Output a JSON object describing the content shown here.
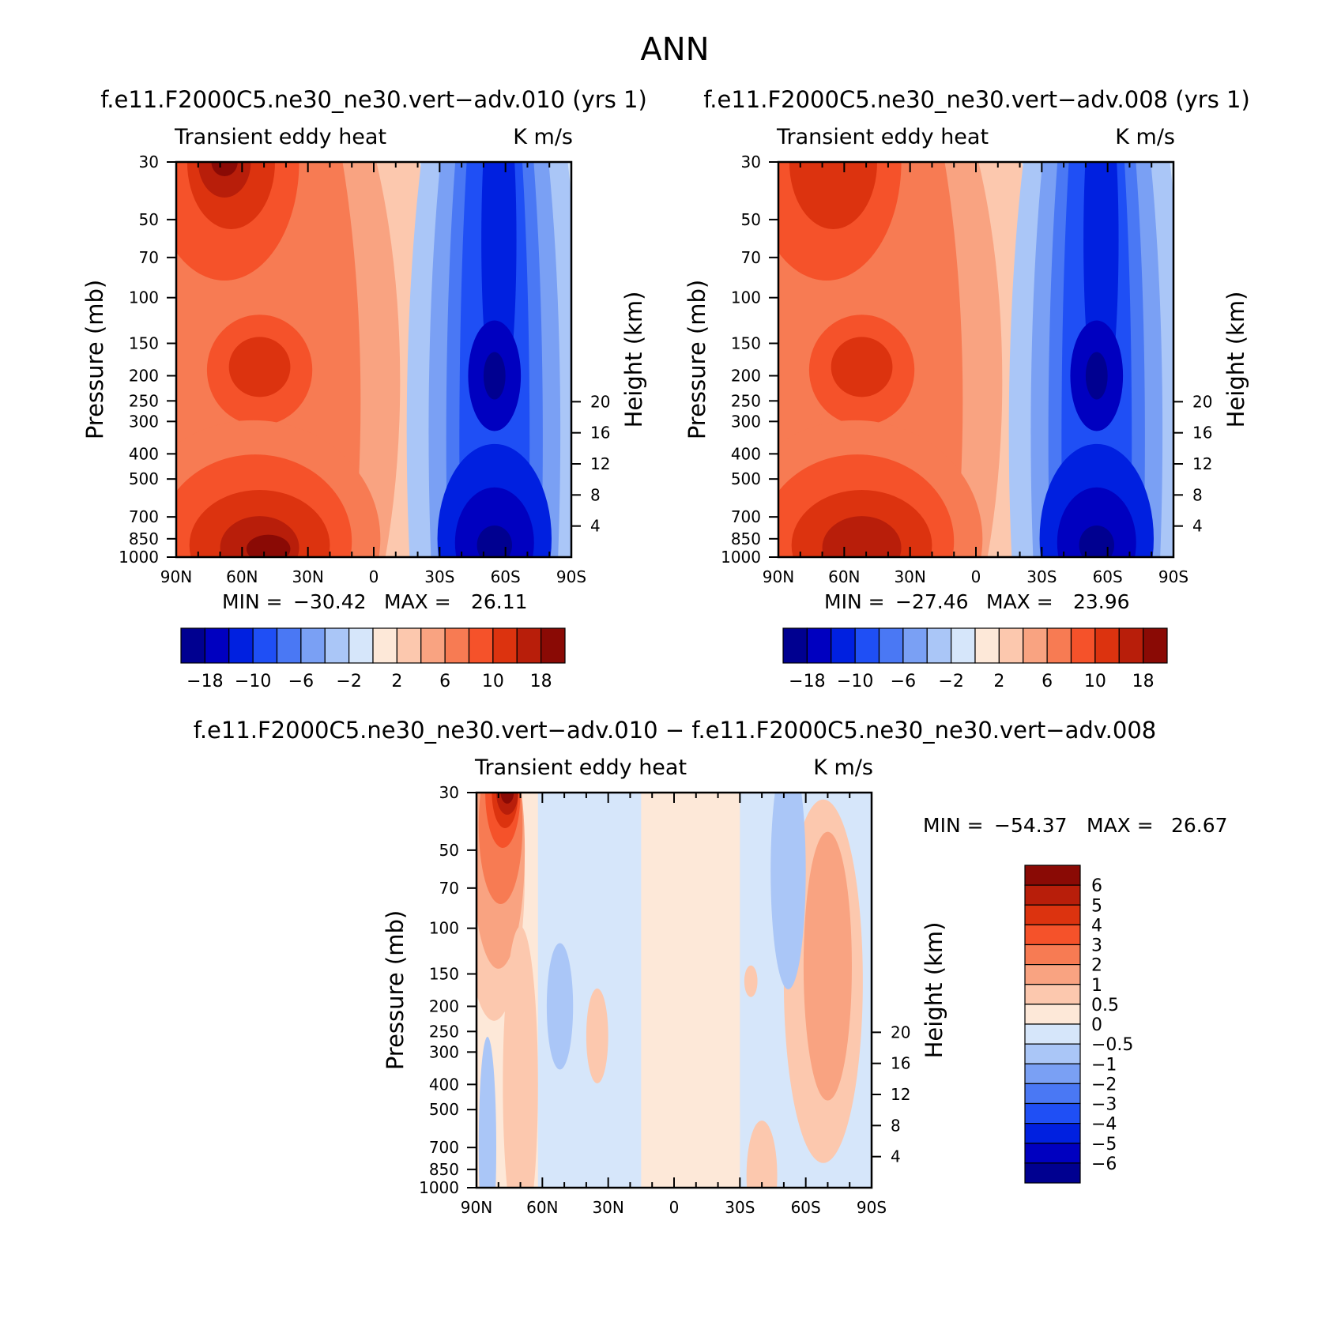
{
  "page_title": "ANN",
  "chart_data": [
    {
      "id": "panel1",
      "type": "heatmap",
      "title": "f.e11.F2000C5.ne30_ne30.vert−adv.010 (yrs 1)",
      "left_label": "Transient eddy heat",
      "right_label": "K m/s",
      "ylabel": "Pressure (mb)",
      "ylabel_right": "Height (km)",
      "x_ticks": [
        "90N",
        "60N",
        "30N",
        "0",
        "30S",
        "60S",
        "90S"
      ],
      "xlim": [
        90,
        -90
      ],
      "y_ticks": [
        "30",
        "50",
        "70",
        "100",
        "150",
        "200",
        "250",
        "300",
        "400",
        "500",
        "700",
        "850",
        "1000"
      ],
      "ylim": [
        1000,
        30
      ],
      "height_ticks": [
        "20",
        "16",
        "12",
        "8",
        "4"
      ],
      "stats": {
        "min_label": "MIN =",
        "min": "−30.42",
        "max_label": "MAX =",
        "max": "26.11"
      },
      "colorbar": {
        "orientation": "horizontal",
        "labels": [
          "−18",
          "−10",
          "−6",
          "−2",
          "2",
          "6",
          "10",
          "18"
        ]
      },
      "features": [
        {
          "lat": 68,
          "p": 30,
          "value": 24,
          "desc": "upper-level positive max"
        },
        {
          "lat": 50,
          "p": 180,
          "value": 13,
          "desc": "mid-level positive"
        },
        {
          "lat": 52,
          "p": 860,
          "value": 22,
          "desc": "lower-level positive max"
        },
        {
          "lat": -52,
          "p": 190,
          "value": -18,
          "desc": "upper-level negative"
        },
        {
          "lat": -52,
          "p": 850,
          "value": -25,
          "desc": "lower-level negative min"
        }
      ]
    },
    {
      "id": "panel2",
      "type": "heatmap",
      "title": "f.e11.F2000C5.ne30_ne30.vert−adv.008 (yrs 1)",
      "left_label": "Transient eddy heat",
      "right_label": "K m/s",
      "ylabel": "Pressure (mb)",
      "ylabel_right": "Height (km)",
      "x_ticks": [
        "90N",
        "60N",
        "30N",
        "0",
        "30S",
        "60S",
        "90S"
      ],
      "xlim": [
        90,
        -90
      ],
      "y_ticks": [
        "30",
        "50",
        "70",
        "100",
        "150",
        "200",
        "250",
        "300",
        "400",
        "500",
        "700",
        "850",
        "1000"
      ],
      "ylim": [
        1000,
        30
      ],
      "height_ticks": [
        "20",
        "16",
        "12",
        "8",
        "4"
      ],
      "stats": {
        "min_label": "MIN =",
        "min": "−27.46",
        "max_label": "MAX =",
        "max": "23.96"
      },
      "colorbar": {
        "orientation": "horizontal",
        "labels": [
          "−18",
          "−10",
          "−6",
          "−2",
          "2",
          "6",
          "10",
          "18"
        ]
      },
      "features": [
        {
          "lat": 68,
          "p": 30,
          "value": 14,
          "desc": "upper-level positive max"
        },
        {
          "lat": 50,
          "p": 180,
          "value": 13,
          "desc": "mid-level positive"
        },
        {
          "lat": 52,
          "p": 860,
          "value": 20,
          "desc": "lower-level positive max"
        },
        {
          "lat": -52,
          "p": 190,
          "value": -18,
          "desc": "upper-level negative"
        },
        {
          "lat": -52,
          "p": 850,
          "value": -25,
          "desc": "lower-level negative min"
        }
      ]
    },
    {
      "id": "panel3",
      "type": "heatmap",
      "title": "f.e11.F2000C5.ne30_ne30.vert−adv.010 − f.e11.F2000C5.ne30_ne30.vert−adv.008",
      "left_label": "Transient eddy heat",
      "right_label": "K m/s",
      "ylabel": "Pressure (mb)",
      "ylabel_right": "Height (km)",
      "x_ticks": [
        "90N",
        "60N",
        "30N",
        "0",
        "30S",
        "60S",
        "90S"
      ],
      "xlim": [
        90,
        -90
      ],
      "y_ticks": [
        "30",
        "50",
        "70",
        "100",
        "150",
        "200",
        "250",
        "300",
        "400",
        "500",
        "700",
        "850",
        "1000"
      ],
      "ylim": [
        1000,
        30
      ],
      "height_ticks": [
        "20",
        "16",
        "12",
        "8",
        "4"
      ],
      "stats": {
        "min_label": "MIN =",
        "min": "−54.37",
        "max_label": "MAX =",
        "max": "26.67"
      },
      "colorbar": {
        "orientation": "vertical",
        "labels": [
          "6",
          "5",
          "4",
          "3",
          "2",
          "1",
          "0.5",
          "0",
          "−0.5",
          "−1",
          "−2",
          "−3",
          "−4",
          "−5",
          "−6"
        ]
      },
      "features": [
        {
          "lat": 78,
          "p": 30,
          "value": 7,
          "desc": "upper polar positive max"
        },
        {
          "lat": -70,
          "p": 150,
          "value": 2.5,
          "desc": "southern positive tongue"
        },
        {
          "lat": -55,
          "p": 60,
          "value": -1.5,
          "desc": "southern upper negative"
        }
      ]
    }
  ],
  "palette": [
    "#000090",
    "#0000c0",
    "#0020e0",
    "#1f4ff5",
    "#4a78f4",
    "#7aa0f4",
    "#aac6f7",
    "#d6e6fa",
    "#fde8d8",
    "#fcc8ae",
    "#f9a381",
    "#f77b53",
    "#f5522a",
    "#dc330f",
    "#b81e0a",
    "#8a0a05"
  ]
}
